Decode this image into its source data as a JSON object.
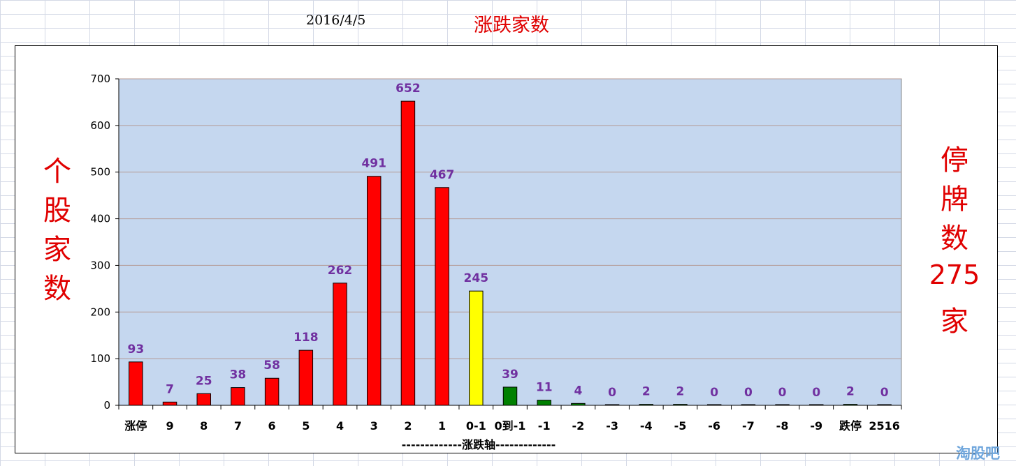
{
  "header": {
    "date": "2016/4/5",
    "title": "涨跌家数"
  },
  "left_label": [
    "个",
    "股",
    "家",
    "数"
  ],
  "right_label": {
    "chars": [
      "停",
      "牌",
      "数"
    ],
    "count": "275",
    "unit": "家"
  },
  "watermark": "淘股吧",
  "colors": {
    "plot_bg": "#c5d7ef",
    "up": "#ff0000",
    "flat": "#ffff00",
    "down": "#008000",
    "value_label": "#7030a0",
    "accent_text": "#e00000"
  },
  "chart_data": {
    "type": "bar",
    "title": "涨跌家数",
    "xlabel": "-------------涨跌轴-------------",
    "ylabel": "",
    "ylim": [
      0,
      700
    ],
    "yticks": [
      0,
      100,
      200,
      300,
      400,
      500,
      600,
      700
    ],
    "grid": true,
    "categories": [
      "涨停",
      "9",
      "8",
      "7",
      "6",
      "5",
      "4",
      "3",
      "2",
      "1",
      "0-1",
      "0到-1",
      "-1",
      "-2",
      "-3",
      "-4",
      "-5",
      "-6",
      "-7",
      "-8",
      "-9",
      "跌停",
      "2516"
    ],
    "values": [
      93,
      7,
      25,
      38,
      58,
      118,
      262,
      491,
      652,
      467,
      245,
      39,
      11,
      4,
      0,
      2,
      2,
      0,
      0,
      0,
      0,
      2,
      0
    ],
    "bar_colors": [
      "#ff0000",
      "#ff0000",
      "#ff0000",
      "#ff0000",
      "#ff0000",
      "#ff0000",
      "#ff0000",
      "#ff0000",
      "#ff0000",
      "#ff0000",
      "#ffff00",
      "#008000",
      "#008000",
      "#008000",
      "#008000",
      "#008000",
      "#008000",
      "#008000",
      "#008000",
      "#008000",
      "#008000",
      "#008000",
      "#008000"
    ]
  }
}
